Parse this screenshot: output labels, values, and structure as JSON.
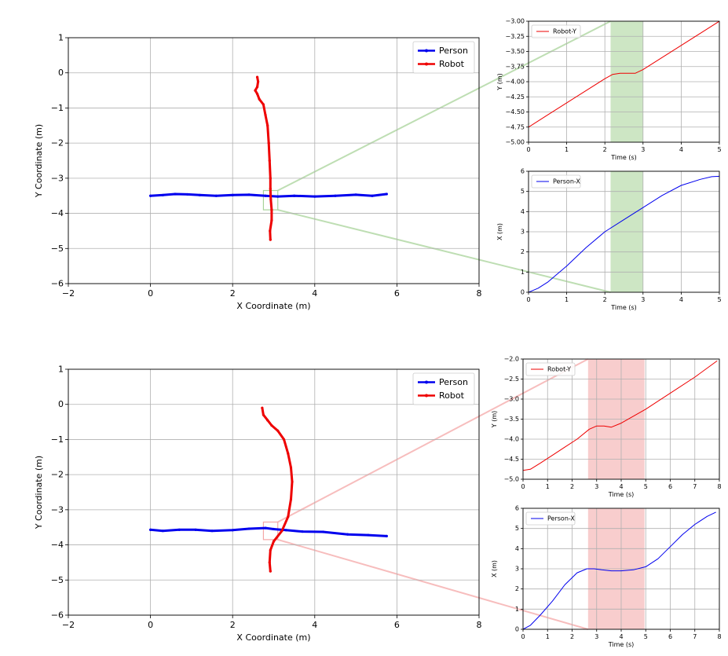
{
  "chart_data": [
    {
      "id": "top-trajectory",
      "type": "line",
      "xlabel": "X Coordinate (m)",
      "ylabel": "Y Coordinate (m)",
      "xlim": [
        -2,
        8
      ],
      "ylim": [
        -6,
        1
      ],
      "xticks": [
        -2,
        0,
        2,
        4,
        6,
        8
      ],
      "xtick_labels": [
        "−2",
        "0",
        "2",
        "4",
        "6",
        "8"
      ],
      "yticks": [
        1,
        0,
        -1,
        -2,
        -3,
        -4,
        -5,
        -6
      ],
      "ytick_labels": [
        "1",
        "0",
        "−1",
        "−2",
        "−3",
        "−4",
        "−5",
        "−6"
      ],
      "grid": true,
      "legend": "top-right",
      "series": [
        {
          "name": "Person",
          "color": "#0000ee",
          "x": [
            0,
            0.3,
            0.6,
            0.9,
            1.2,
            1.6,
            2.0,
            2.4,
            2.8,
            3.1,
            3.5,
            4.0,
            4.5,
            5.0,
            5.4,
            5.75
          ],
          "y": [
            -3.5,
            -3.48,
            -3.45,
            -3.46,
            -3.48,
            -3.5,
            -3.48,
            -3.47,
            -3.5,
            -3.52,
            -3.5,
            -3.52,
            -3.5,
            -3.47,
            -3.5,
            -3.45
          ]
        },
        {
          "name": "Robot",
          "color": "#ee0000",
          "x": [
            2.92,
            2.91,
            2.95,
            2.95,
            2.93,
            2.92,
            2.92,
            2.9,
            2.88,
            2.85,
            2.8,
            2.75,
            2.65,
            2.6,
            2.55,
            2.6,
            2.62,
            2.6
          ],
          "y": [
            -4.75,
            -4.5,
            -4.2,
            -3.9,
            -3.6,
            -3.3,
            -3.0,
            -2.5,
            -2.0,
            -1.5,
            -1.2,
            -0.9,
            -0.75,
            -0.6,
            -0.5,
            -0.4,
            -0.25,
            -0.12
          ]
        }
      ],
      "zoom_box": {
        "x": [
          2.75,
          3.1
        ],
        "y": [
          -3.9,
          -3.35
        ]
      }
    },
    {
      "id": "top-robot-y",
      "type": "line",
      "xlabel": "Time (s)",
      "ylabel": "Y (m)",
      "xlim": [
        0,
        5
      ],
      "ylim": [
        -5.0,
        -3.0
      ],
      "xticks": [
        0,
        1,
        2,
        3,
        4,
        5
      ],
      "xtick_labels": [
        "0",
        "1",
        "2",
        "3",
        "4",
        "5"
      ],
      "yticks": [
        -3.0,
        -3.25,
        -3.5,
        -3.75,
        -4.0,
        -4.25,
        -4.5,
        -4.75,
        -5.0
      ],
      "ytick_labels": [
        "−3.00",
        "−3.25",
        "−3.50",
        "−3.75",
        "−4.00",
        "−4.25",
        "−4.50",
        "−4.75",
        "−5.00"
      ],
      "grid": true,
      "legend": "top-left",
      "series": [
        {
          "name": "Robot-Y",
          "color": "#ee0000",
          "x": [
            0,
            0.5,
            1.0,
            1.5,
            2.0,
            2.2,
            2.4,
            2.6,
            2.8,
            3.0,
            3.5,
            4.0,
            4.5,
            5.0
          ],
          "y": [
            -4.75,
            -4.55,
            -4.35,
            -4.15,
            -3.95,
            -3.88,
            -3.86,
            -3.86,
            -3.86,
            -3.8,
            -3.6,
            -3.4,
            -3.2,
            -3.0
          ]
        }
      ],
      "highlight": {
        "x": [
          2.15,
          3.0
        ],
        "color": "#cde6c4"
      }
    },
    {
      "id": "top-person-x",
      "type": "line",
      "xlabel": "Time (s)",
      "ylabel": "X (m)",
      "xlim": [
        0,
        5
      ],
      "ylim": [
        0,
        6
      ],
      "xticks": [
        0,
        1,
        2,
        3,
        4,
        5
      ],
      "xtick_labels": [
        "0",
        "1",
        "2",
        "3",
        "4",
        "5"
      ],
      "yticks": [
        0,
        1,
        2,
        3,
        4,
        5,
        6
      ],
      "ytick_labels": [
        "0",
        "1",
        "2",
        "3",
        "4",
        "5",
        "6"
      ],
      "grid": true,
      "legend": "top-left",
      "series": [
        {
          "name": "Person-X",
          "color": "#0000ee",
          "x": [
            0,
            0.25,
            0.5,
            0.75,
            1.0,
            1.5,
            2.0,
            2.5,
            3.0,
            3.5,
            4.0,
            4.5,
            4.8,
            5.0
          ],
          "y": [
            0,
            0.2,
            0.5,
            0.9,
            1.3,
            2.2,
            3.0,
            3.6,
            4.2,
            4.8,
            5.3,
            5.6,
            5.73,
            5.75
          ]
        }
      ],
      "highlight": {
        "x": [
          2.15,
          3.0
        ],
        "color": "#cde6c4"
      }
    },
    {
      "id": "bottom-trajectory",
      "type": "line",
      "xlabel": "X Coordinate (m)",
      "ylabel": "Y Coordinate (m)",
      "xlim": [
        -2,
        8
      ],
      "ylim": [
        -6,
        1
      ],
      "xticks": [
        -2,
        0,
        2,
        4,
        6,
        8
      ],
      "xtick_labels": [
        "−2",
        "0",
        "2",
        "4",
        "6",
        "8"
      ],
      "yticks": [
        1,
        0,
        -1,
        -2,
        -3,
        -4,
        -5,
        -6
      ],
      "ytick_labels": [
        "1",
        "0",
        "−1",
        "−2",
        "−3",
        "−4",
        "−5",
        "−6"
      ],
      "grid": true,
      "legend": "top-right",
      "series": [
        {
          "name": "Person",
          "color": "#0000ee",
          "x": [
            0,
            0.3,
            0.7,
            1.1,
            1.5,
            2.0,
            2.4,
            2.8,
            3.0,
            3.3,
            3.7,
            4.2,
            4.8,
            5.3,
            5.75
          ],
          "y": [
            -3.57,
            -3.6,
            -3.57,
            -3.57,
            -3.6,
            -3.58,
            -3.54,
            -3.52,
            -3.55,
            -3.58,
            -3.62,
            -3.63,
            -3.7,
            -3.72,
            -3.75
          ]
        },
        {
          "name": "Robot",
          "color": "#ee0000",
          "x": [
            2.92,
            2.9,
            2.92,
            3.0,
            3.2,
            3.35,
            3.42,
            3.45,
            3.42,
            3.35,
            3.25,
            3.1,
            2.95,
            2.85,
            2.75,
            2.72
          ],
          "y": [
            -4.75,
            -4.5,
            -4.15,
            -3.9,
            -3.6,
            -3.2,
            -2.7,
            -2.2,
            -1.8,
            -1.4,
            -1.0,
            -0.75,
            -0.6,
            -0.45,
            -0.3,
            -0.1
          ]
        }
      ],
      "zoom_box": {
        "x": [
          2.75,
          3.1
        ],
        "y": [
          -3.85,
          -3.35
        ]
      }
    },
    {
      "id": "bottom-robot-y",
      "type": "line",
      "xlabel": "Time (s)",
      "ylabel": "Y (m)",
      "xlim": [
        0,
        8
      ],
      "ylim": [
        -5.0,
        -2.0
      ],
      "xticks": [
        0,
        1,
        2,
        3,
        4,
        5,
        6,
        7,
        8
      ],
      "xtick_labels": [
        "0",
        "1",
        "2",
        "3",
        "4",
        "5",
        "6",
        "7",
        "8"
      ],
      "yticks": [
        -2.0,
        -2.5,
        -3.0,
        -3.5,
        -4.0,
        -4.5,
        -5.0
      ],
      "ytick_labels": [
        "−2.0",
        "−2.5",
        "−3.0",
        "−3.5",
        "−4.0",
        "−4.5",
        "−5.0"
      ],
      "grid": true,
      "legend": "top-left",
      "series": [
        {
          "name": "Robot-Y",
          "color": "#ee0000",
          "x": [
            0,
            0.3,
            0.7,
            1.2,
            1.7,
            2.2,
            2.7,
            3.0,
            3.3,
            3.6,
            4.0,
            5.0,
            6.0,
            7.0,
            7.9
          ],
          "y": [
            -4.78,
            -4.75,
            -4.6,
            -4.4,
            -4.2,
            -4.0,
            -3.75,
            -3.67,
            -3.67,
            -3.7,
            -3.6,
            -3.25,
            -2.85,
            -2.45,
            -2.05
          ]
        }
      ],
      "highlight": {
        "x": [
          2.65,
          4.95
        ],
        "color": "#f8cdcd"
      }
    },
    {
      "id": "bottom-person-x",
      "type": "line",
      "xlabel": "Time (s)",
      "ylabel": "X (m)",
      "xlim": [
        0,
        8
      ],
      "ylim": [
        0,
        6
      ],
      "xticks": [
        0,
        1,
        2,
        3,
        4,
        5,
        6,
        7,
        8
      ],
      "xtick_labels": [
        "0",
        "1",
        "2",
        "3",
        "4",
        "5",
        "6",
        "7",
        "8"
      ],
      "yticks": [
        0,
        1,
        2,
        3,
        4,
        5,
        6
      ],
      "ytick_labels": [
        "0",
        "1",
        "2",
        "3",
        "4",
        "5",
        "6"
      ],
      "grid": true,
      "legend": "top-left",
      "series": [
        {
          "name": "Person-X",
          "color": "#0000ee",
          "x": [
            0,
            0.3,
            0.7,
            1.2,
            1.7,
            2.2,
            2.6,
            2.9,
            3.2,
            3.6,
            4.0,
            4.5,
            5.0,
            5.5,
            6.0,
            6.5,
            7.0,
            7.5,
            7.85
          ],
          "y": [
            0,
            0.2,
            0.7,
            1.4,
            2.2,
            2.8,
            3.0,
            3.0,
            2.95,
            2.9,
            2.9,
            2.95,
            3.1,
            3.5,
            4.1,
            4.7,
            5.2,
            5.6,
            5.8
          ]
        }
      ],
      "highlight": {
        "x": [
          2.65,
          4.95
        ],
        "color": "#f8cdcd"
      }
    }
  ]
}
